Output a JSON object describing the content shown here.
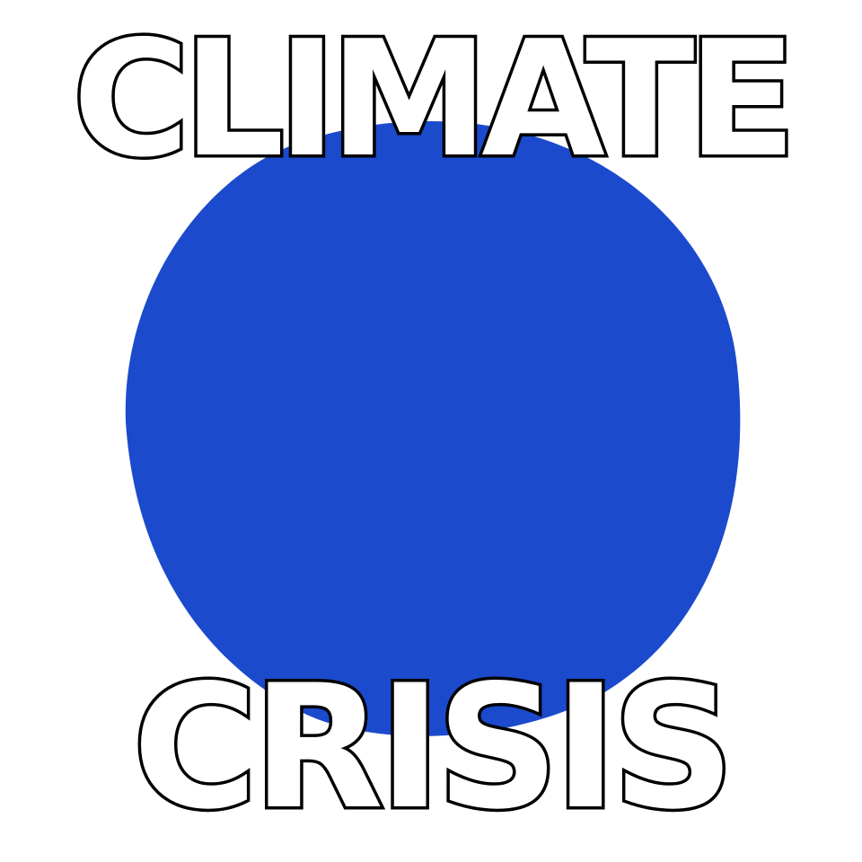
{
  "headline": {
    "top": "CLIMATE",
    "bottom": "CRISIS"
  },
  "colors": {
    "background": "#ffffff",
    "globe_fill": "#1b4acc",
    "text_fill": "#ffffff",
    "text_outline": "#000000"
  }
}
